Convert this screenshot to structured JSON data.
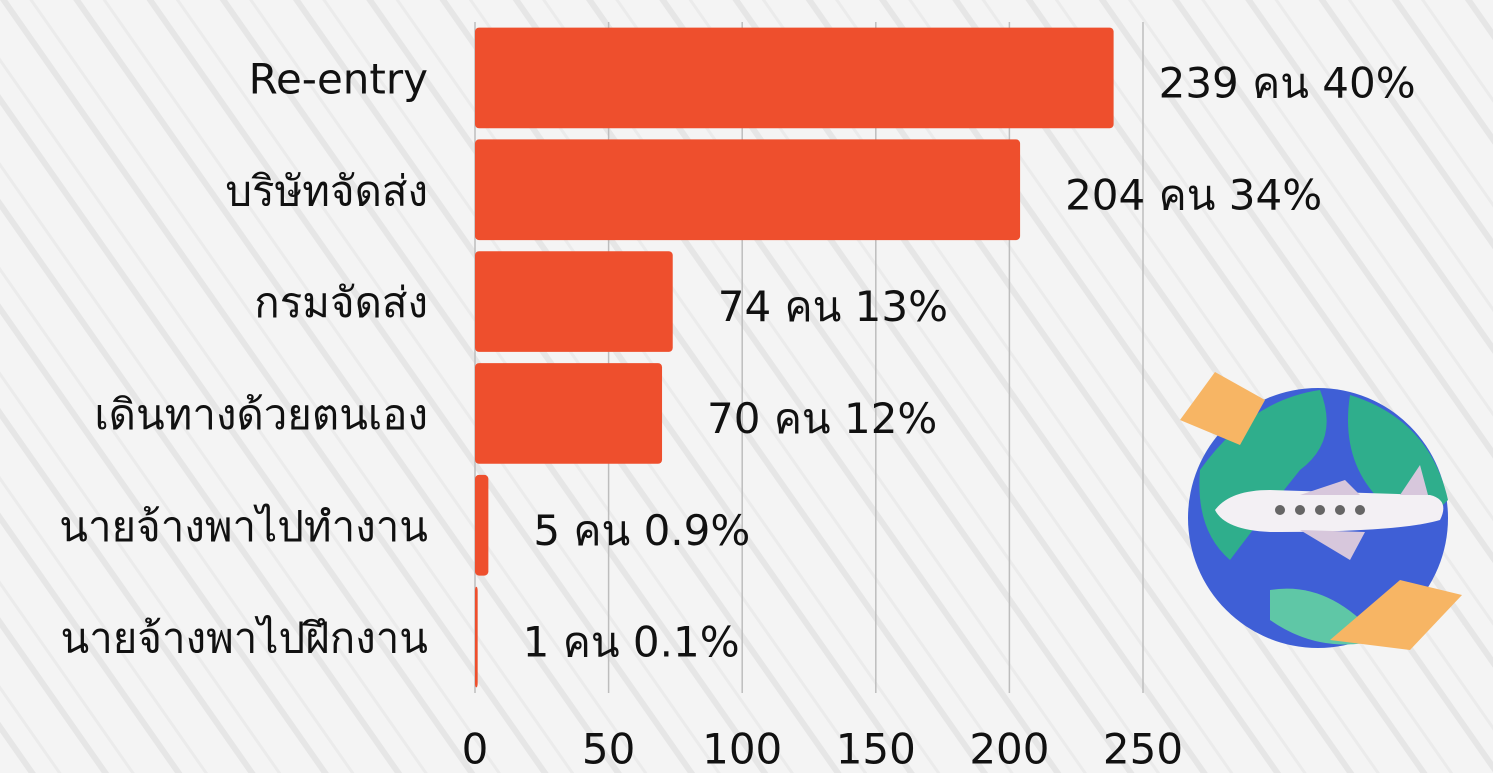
{
  "chart_data": {
    "type": "hbar",
    "categories": [
      "Re-entry",
      "บริษัทจัดส่ง",
      "กรมจัดส่ง",
      "เดินทางด้วยตนเอง",
      "นายจ้างพาไปทำงาน",
      "นายจ้างพาไปฝึกงาน"
    ],
    "values": [
      239,
      204,
      74,
      70,
      5,
      1
    ],
    "value_labels": [
      "239 คน 40%",
      "204 คน 34%",
      "74 คน 13%",
      "70 คน 12%",
      "5 คน 0.9%",
      "1 คน 0.1%"
    ],
    "color": "#ee4f2d",
    "xlim": [
      0,
      250
    ],
    "xticks": [
      0,
      50,
      100,
      150,
      200,
      250
    ],
    "grid": true
  }
}
